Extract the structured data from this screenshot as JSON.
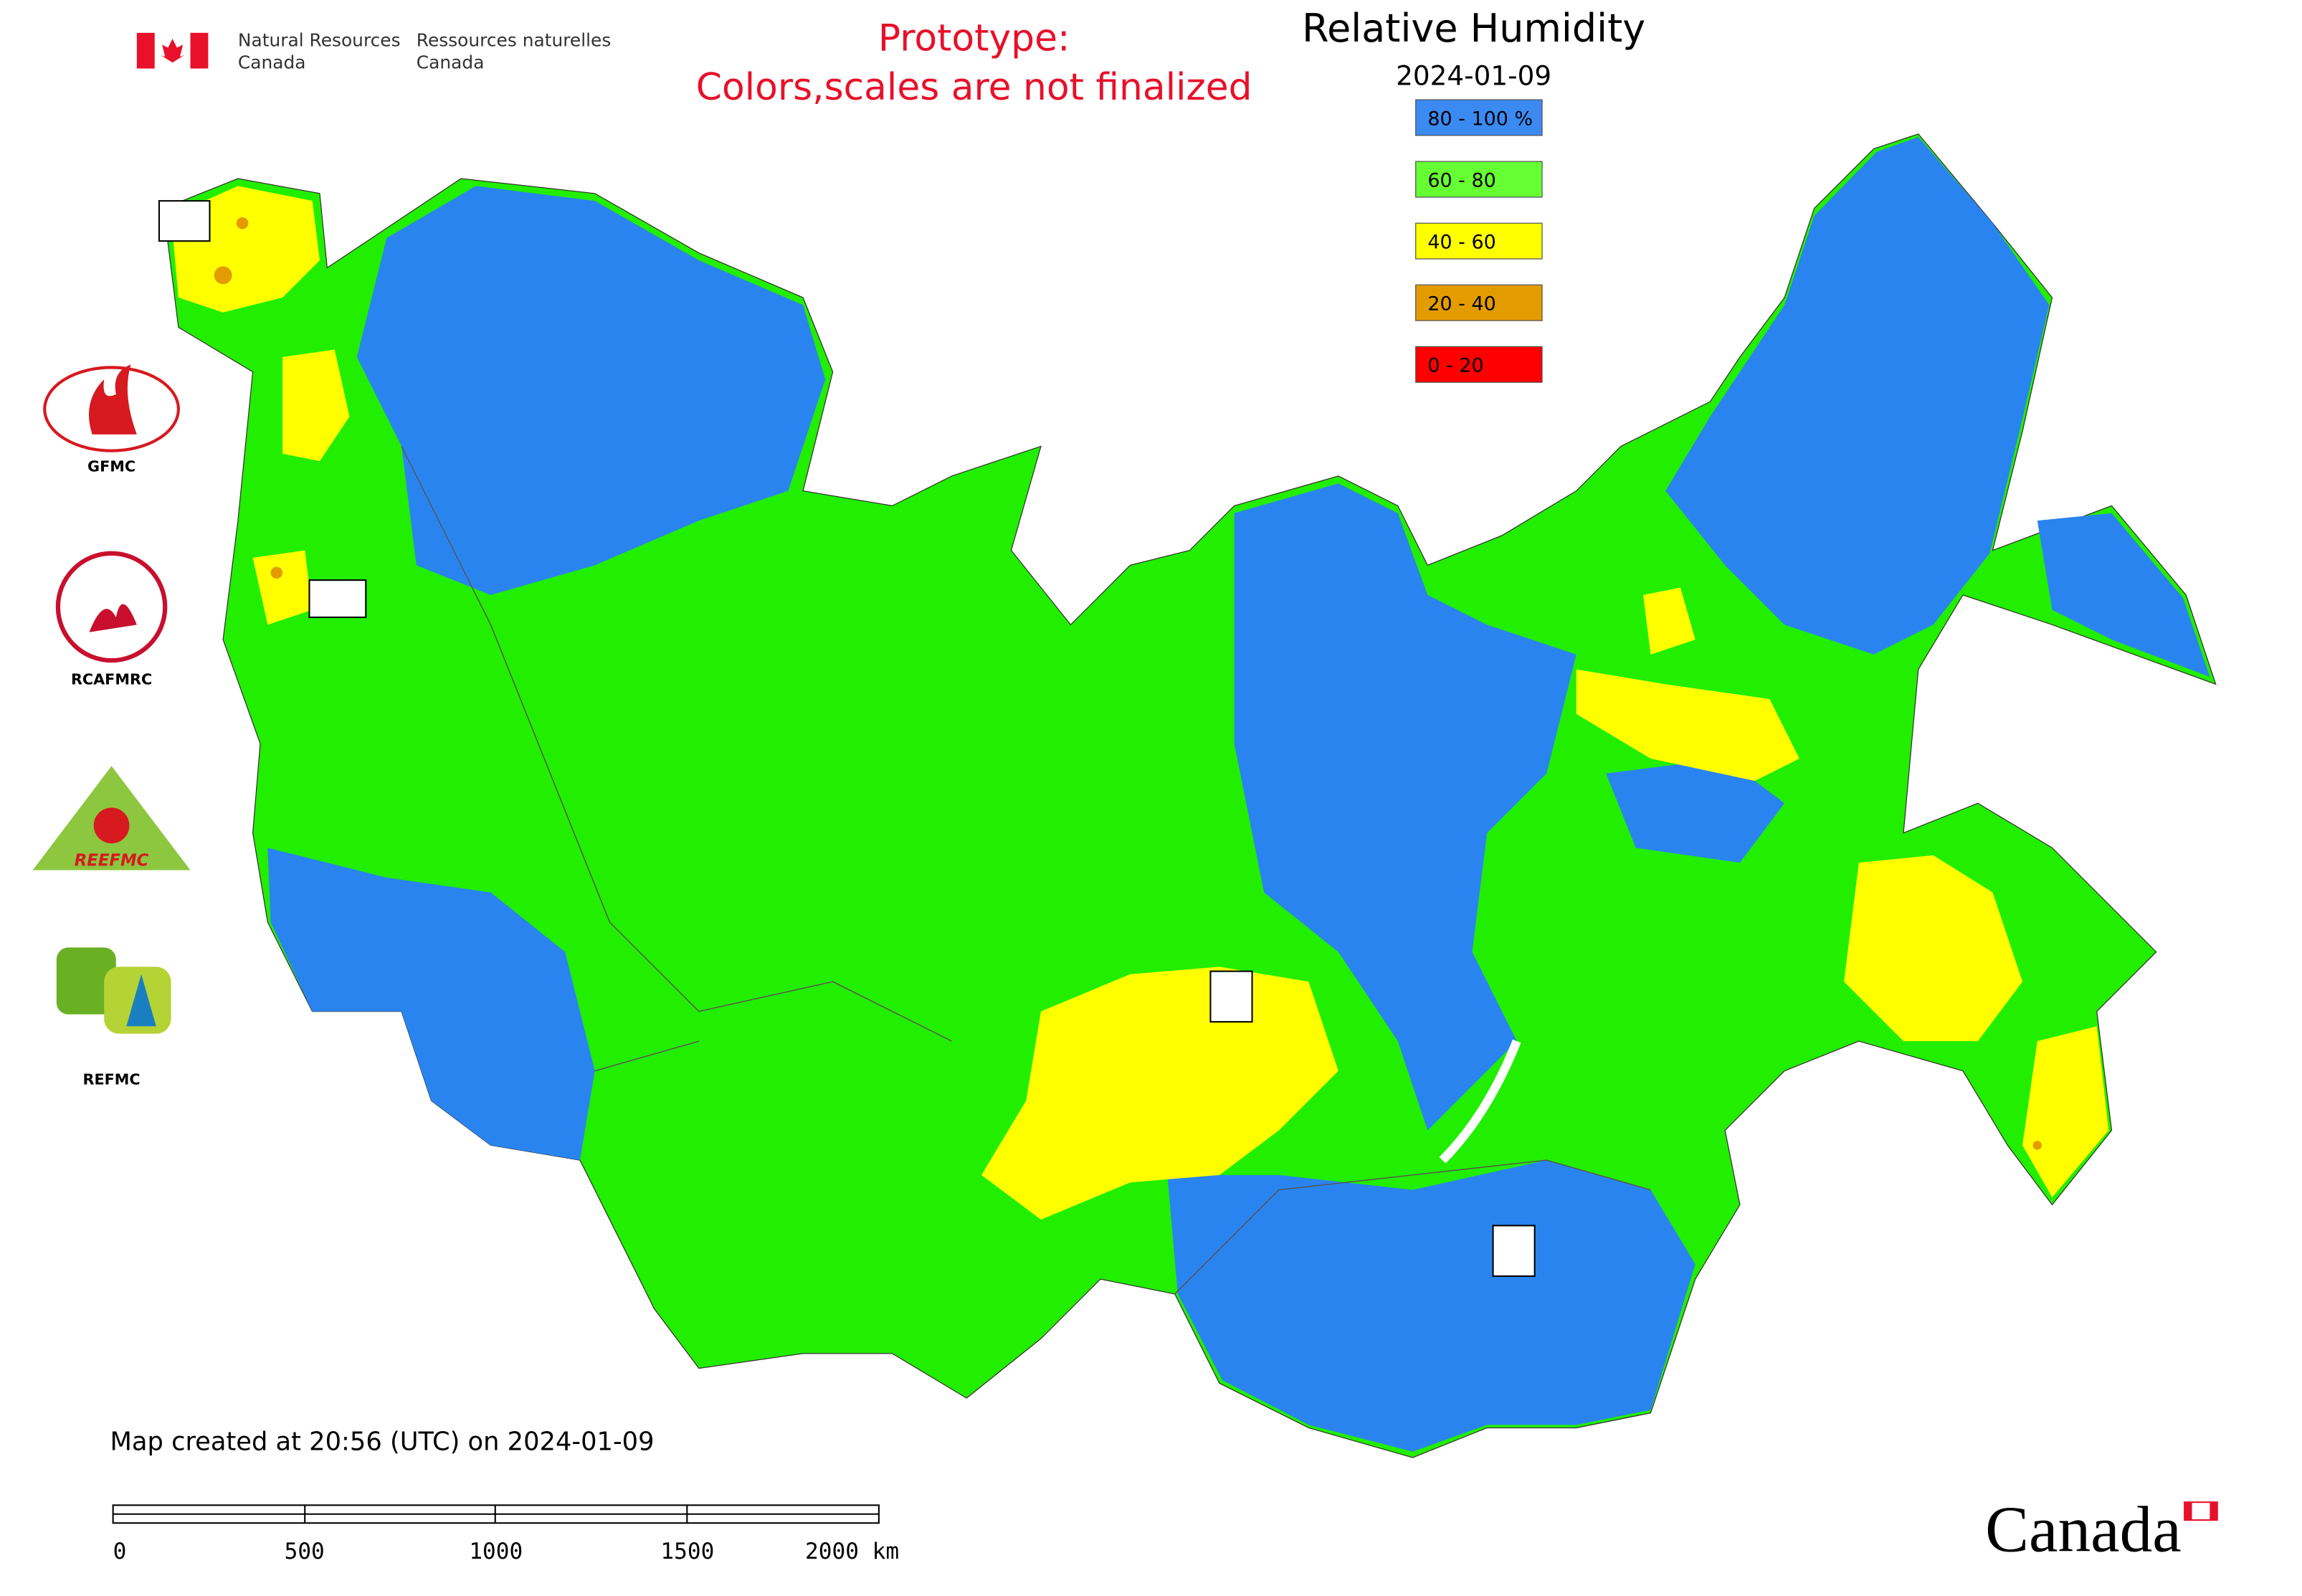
{
  "header": {
    "agency_en": [
      "Natural Resources",
      "Canada"
    ],
    "agency_fr": [
      "Ressources naturelles",
      "Canada"
    ],
    "notice": [
      "Prototype:",
      "Colors,scales are not finalized"
    ]
  },
  "title": "Relative Humidity",
  "date": "2024-01-09",
  "legend": [
    {
      "label": "80 - 100 %",
      "color": "#3a8af2"
    },
    {
      "label": "60 - 80",
      "color": "#66ff33"
    },
    {
      "label": "40 - 60",
      "color": "#ffff00"
    },
    {
      "label": "20 - 40",
      "color": "#e39c00"
    },
    {
      "label": "0 - 20",
      "color": "#ff0000"
    }
  ],
  "logos": [
    "GFMC",
    "RCAFMRC",
    "REEFMC",
    "REFMC"
  ],
  "footer": "Map created at 20:56 (UTC) on 2024-01-09",
  "scale_bar": [
    "0",
    "500",
    "1000",
    "1500",
    "2000 km"
  ],
  "wordmark": "Canada"
}
